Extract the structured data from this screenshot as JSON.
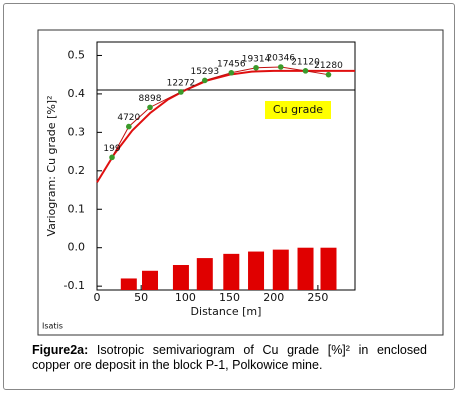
{
  "chart_data": {
    "type": "line",
    "x_label": "Distance [m]",
    "y_label": "Variogram: Cu grade [%]²",
    "software": "Isatis",
    "xlim": [
      0,
      292
    ],
    "ylim": [
      -0.11,
      0.535
    ],
    "xticks": [
      0,
      50,
      100,
      150,
      200,
      250
    ],
    "yticks": [
      -0.1,
      {
        "value": 0,
        "label": "0.0"
      },
      0.1,
      0.2,
      0.3,
      0.4,
      0.5
    ],
    "hline": 0.41,
    "series": [
      {
        "type": "line",
        "color": "#e01010",
        "x": [
          0,
          20,
          40,
          60,
          80,
          100,
          125,
          150,
          175,
          200,
          292
        ],
        "values": [
          0.17,
          0.245,
          0.305,
          0.35,
          0.385,
          0.41,
          0.435,
          0.45,
          0.458,
          0.46,
          0.46
        ]
      },
      {
        "type": "scatter",
        "name": "Cu grade",
        "color": "#3a9a2a",
        "line_color": "#c01010",
        "x": [
          17,
          36,
          60,
          95,
          122,
          152,
          180,
          208,
          236,
          262
        ],
        "values": [
          0.235,
          0.315,
          0.365,
          0.405,
          0.435,
          0.455,
          0.468,
          0.47,
          0.46,
          0.45
        ],
        "point_labels": [
          "199",
          "4720",
          "8898",
          "12272",
          "15293",
          "17456",
          "19314",
          "20346",
          "21120",
          "21280"
        ]
      },
      {
        "type": "bar",
        "color": "#e00000",
        "x": [
          36,
          60,
          95,
          122,
          152,
          180,
          208,
          236,
          262
        ],
        "values": [
          -0.08,
          -0.06,
          -0.045,
          -0.027,
          -0.016,
          -0.01,
          -0.005,
          0,
          0
        ]
      }
    ]
  },
  "caption": {
    "label": "Figure2a:",
    "text": "Isotropic semivariogram of Cu grade [%]² in enclosed copper ore deposit in the block P-1, Polkowice mine."
  }
}
